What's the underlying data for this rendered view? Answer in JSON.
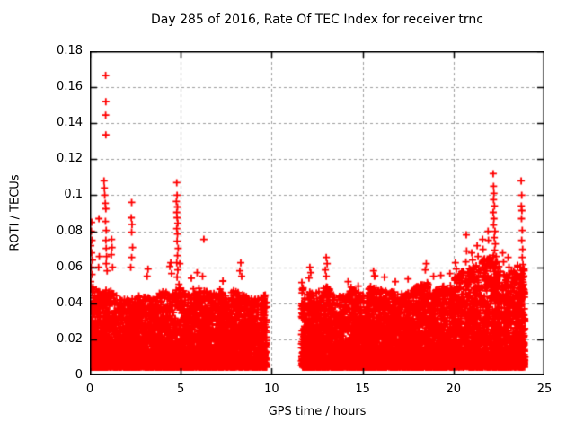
{
  "chart_data": {
    "type": "scatter",
    "title": "Day 285 of 2016, Rate Of TEC Index for receiver trnc",
    "xlabel": "GPS time / hours",
    "ylabel": "ROTI / TECUs",
    "xlim": [
      0,
      25
    ],
    "ylim": [
      0,
      0.18
    ],
    "xticks": [
      {
        "v": 0,
        "label": "0"
      },
      {
        "v": 5,
        "label": "5"
      },
      {
        "v": 10,
        "label": "10"
      },
      {
        "v": 15,
        "label": "15"
      },
      {
        "v": 20,
        "label": "20"
      },
      {
        "v": 25,
        "label": "25"
      }
    ],
    "yticks": [
      {
        "v": 0,
        "label": "0"
      },
      {
        "v": 0.02,
        "label": "0.02"
      },
      {
        "v": 0.04,
        "label": "0.04"
      },
      {
        "v": 0.06,
        "label": "0.06"
      },
      {
        "v": 0.08,
        "label": "0.08"
      },
      {
        "v": 0.1,
        "label": "0.1"
      },
      {
        "v": 0.12,
        "label": "0.12"
      },
      {
        "v": 0.14,
        "label": "0.14"
      },
      {
        "v": 0.16,
        "label": "0.16"
      },
      {
        "v": 0.18,
        "label": "0.18"
      }
    ],
    "grid": {
      "on": true,
      "dashed": true,
      "color": "#9e9e9e"
    },
    "axis_color": "#000000",
    "background": "#ffffff",
    "legend": "none",
    "marker": {
      "shape": "plus",
      "color": "#ff0000",
      "size": 8
    },
    "series": [
      {
        "name": "ROTI",
        "segments": [
          {
            "t0": 0.02,
            "t1": 9.73,
            "points_per_hour": 480,
            "envelope": [
              [
                0.0,
                0.052
              ],
              [
                0.3,
                0.048
              ],
              [
                0.6,
                0.046
              ],
              [
                1.0,
                0.048
              ],
              [
                1.5,
                0.044
              ],
              [
                2.0,
                0.042
              ],
              [
                2.5,
                0.044
              ],
              [
                3.0,
                0.046
              ],
              [
                3.5,
                0.042
              ],
              [
                4.0,
                0.048
              ],
              [
                4.5,
                0.046
              ],
              [
                5.0,
                0.05
              ],
              [
                5.5,
                0.044
              ],
              [
                6.0,
                0.05
              ],
              [
                6.5,
                0.046
              ],
              [
                7.0,
                0.05
              ],
              [
                7.5,
                0.044
              ],
              [
                8.0,
                0.048
              ],
              [
                8.5,
                0.046
              ],
              [
                9.0,
                0.042
              ],
              [
                9.5,
                0.044
              ],
              [
                9.73,
                0.046
              ]
            ]
          },
          {
            "t0": 11.63,
            "t1": 23.93,
            "points_per_hour": 500,
            "envelope": [
              [
                11.63,
                0.052
              ],
              [
                12.0,
                0.048
              ],
              [
                12.5,
                0.046
              ],
              [
                13.0,
                0.05
              ],
              [
                13.5,
                0.044
              ],
              [
                14.0,
                0.046
              ],
              [
                14.5,
                0.048
              ],
              [
                15.0,
                0.046
              ],
              [
                15.5,
                0.05
              ],
              [
                16.0,
                0.048
              ],
              [
                16.5,
                0.046
              ],
              [
                17.0,
                0.048
              ],
              [
                17.5,
                0.046
              ],
              [
                18.0,
                0.05
              ],
              [
                18.5,
                0.052
              ],
              [
                19.0,
                0.048
              ],
              [
                19.5,
                0.05
              ],
              [
                20.0,
                0.054
              ],
              [
                20.5,
                0.058
              ],
              [
                21.0,
                0.06
              ],
              [
                21.5,
                0.064
              ],
              [
                22.0,
                0.068
              ],
              [
                22.3,
                0.066
              ],
              [
                22.6,
                0.058
              ],
              [
                23.0,
                0.056
              ],
              [
                23.4,
                0.06
              ],
              [
                23.7,
                0.064
              ],
              [
                23.93,
                0.058
              ]
            ]
          }
        ],
        "outliers": [
          [
            0.1,
            0.085
          ],
          [
            0.08,
            0.08
          ],
          [
            0.12,
            0.075
          ],
          [
            0.05,
            0.072
          ],
          [
            0.1,
            0.068
          ],
          [
            0.15,
            0.064
          ],
          [
            0.07,
            0.06
          ],
          [
            0.12,
            0.056
          ],
          [
            0.05,
            0.052
          ],
          [
            0.1,
            0.048
          ],
          [
            0.5,
            0.087
          ],
          [
            0.52,
            0.066
          ],
          [
            0.48,
            0.06
          ],
          [
            0.87,
            0.1665
          ],
          [
            0.88,
            0.152
          ],
          [
            0.87,
            0.1445
          ],
          [
            0.88,
            0.1335
          ],
          [
            0.78,
            0.108
          ],
          [
            0.8,
            0.104
          ],
          [
            0.82,
            0.1
          ],
          [
            0.85,
            0.0955
          ],
          [
            0.88,
            0.0925
          ],
          [
            0.86,
            0.0855
          ],
          [
            0.9,
            0.0805
          ],
          [
            0.88,
            0.075
          ],
          [
            0.9,
            0.0705
          ],
          [
            0.92,
            0.066
          ],
          [
            0.9,
            0.062
          ],
          [
            0.95,
            0.058
          ],
          [
            1.2,
            0.0755
          ],
          [
            1.22,
            0.071
          ],
          [
            1.18,
            0.067
          ],
          [
            1.25,
            0.06
          ],
          [
            2.3,
            0.096
          ],
          [
            2.28,
            0.0875
          ],
          [
            2.32,
            0.0838
          ],
          [
            2.3,
            0.0795
          ],
          [
            2.35,
            0.071
          ],
          [
            2.3,
            0.0655
          ],
          [
            2.25,
            0.06
          ],
          [
            3.2,
            0.059
          ],
          [
            3.15,
            0.055
          ],
          [
            4.45,
            0.0625
          ],
          [
            4.4,
            0.0605
          ],
          [
            4.5,
            0.0565
          ],
          [
            4.78,
            0.107
          ],
          [
            4.8,
            0.1
          ],
          [
            4.76,
            0.0965
          ],
          [
            4.82,
            0.0935
          ],
          [
            4.78,
            0.0905
          ],
          [
            4.8,
            0.0875
          ],
          [
            4.84,
            0.0845
          ],
          [
            4.78,
            0.0815
          ],
          [
            4.82,
            0.0785
          ],
          [
            4.8,
            0.0745
          ],
          [
            4.86,
            0.0705
          ],
          [
            4.82,
            0.0665
          ],
          [
            4.78,
            0.0625
          ],
          [
            4.84,
            0.0585
          ],
          [
            4.8,
            0.0545
          ],
          [
            4.9,
            0.0505
          ],
          [
            4.95,
            0.062
          ],
          [
            5.9,
            0.057
          ],
          [
            6.2,
            0.055
          ],
          [
            6.27,
            0.0755
          ],
          [
            8.3,
            0.0625
          ],
          [
            8.25,
            0.058
          ],
          [
            8.35,
            0.055
          ],
          [
            12.1,
            0.06
          ],
          [
            12.15,
            0.057
          ],
          [
            12.05,
            0.054
          ],
          [
            13.0,
            0.0655
          ],
          [
            13.05,
            0.062
          ],
          [
            12.95,
            0.0585
          ],
          [
            13.0,
            0.055
          ],
          [
            14.2,
            0.052
          ],
          [
            15.6,
            0.058
          ],
          [
            15.65,
            0.055
          ],
          [
            16.2,
            0.0545
          ],
          [
            16.8,
            0.052
          ],
          [
            17.5,
            0.0535
          ],
          [
            18.5,
            0.062
          ],
          [
            18.45,
            0.0585
          ],
          [
            18.9,
            0.055
          ],
          [
            19.3,
            0.0555
          ],
          [
            19.8,
            0.0565
          ],
          [
            20.1,
            0.0625
          ],
          [
            20.15,
            0.059
          ],
          [
            20.7,
            0.078
          ],
          [
            20.72,
            0.069
          ],
          [
            20.68,
            0.063
          ],
          [
            21.0,
            0.068
          ],
          [
            21.05,
            0.064
          ],
          [
            21.3,
            0.072
          ],
          [
            21.35,
            0.066
          ],
          [
            21.6,
            0.0755
          ],
          [
            21.62,
            0.07
          ],
          [
            21.9,
            0.08
          ],
          [
            21.92,
            0.075
          ],
          [
            22.18,
            0.112
          ],
          [
            22.2,
            0.105
          ],
          [
            22.22,
            0.101
          ],
          [
            22.2,
            0.0975
          ],
          [
            22.25,
            0.094
          ],
          [
            22.18,
            0.0905
          ],
          [
            22.22,
            0.087
          ],
          [
            22.2,
            0.0835
          ],
          [
            22.28,
            0.08
          ],
          [
            22.24,
            0.0765
          ],
          [
            22.3,
            0.073
          ],
          [
            22.26,
            0.0695
          ],
          [
            22.35,
            0.066
          ],
          [
            22.3,
            0.0625
          ],
          [
            22.7,
            0.068
          ],
          [
            22.75,
            0.063
          ],
          [
            23.0,
            0.0655
          ],
          [
            23.05,
            0.06
          ],
          [
            23.3,
            0.058
          ],
          [
            23.72,
            0.108
          ],
          [
            23.75,
            0.1
          ],
          [
            23.73,
            0.094
          ],
          [
            23.76,
            0.0915
          ],
          [
            23.74,
            0.087
          ],
          [
            23.78,
            0.0805
          ],
          [
            23.75,
            0.075
          ],
          [
            23.8,
            0.07
          ],
          [
            23.78,
            0.0655
          ],
          [
            23.82,
            0.0615
          ],
          [
            23.85,
            0.058
          ]
        ]
      }
    ],
    "synthesis": {
      "seed": 285,
      "ymin": 0.0045,
      "shape": 2.2,
      "streak_prob": 0.1
    }
  }
}
